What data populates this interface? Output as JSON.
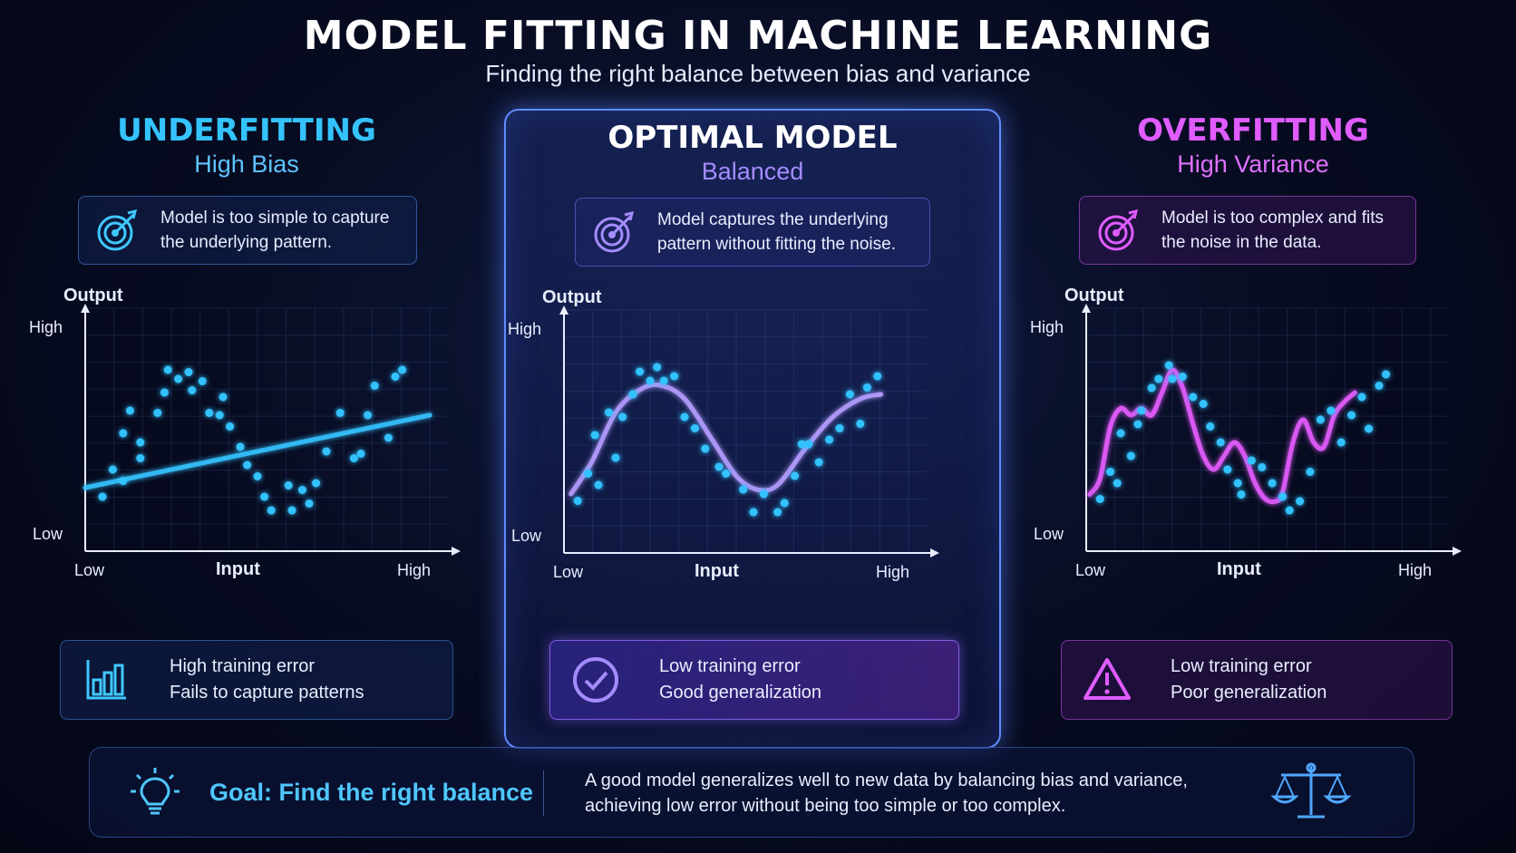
{
  "header": {
    "title": "MODEL FITTING IN MACHINE LEARNING",
    "subtitle": "Finding the right balance between bias and variance"
  },
  "panels": [
    {
      "title": "UNDERFITTING",
      "subtitle": "High Bias",
      "description": [
        "Model is too simple to capture",
        "the underlying pattern."
      ],
      "description_icon": "target-icon",
      "result": [
        "High training error",
        "Fails to capture patterns"
      ],
      "result_icon": "bar-chart-icon",
      "accent": "#34c3ff"
    },
    {
      "title": "OPTIMAL MODEL",
      "subtitle": "Balanced",
      "description": [
        "Model captures the underlying",
        "pattern without fitting the noise."
      ],
      "description_icon": "target-icon",
      "result": [
        "Low training error",
        "Good generalization"
      ],
      "result_icon": "check-circle-icon",
      "accent": "#9d86ff"
    },
    {
      "title": "OVERFITTING",
      "subtitle": "High Variance",
      "description": [
        "Model is too complex and fits",
        "the noise in the data."
      ],
      "description_icon": "target-icon",
      "result": [
        "Low training error",
        "Poor generalization"
      ],
      "result_icon": "warning-icon",
      "accent": "#e05cff"
    }
  ],
  "axes": {
    "y_title": "Output",
    "x_title": "Input",
    "y_high": "High",
    "y_low": "Low",
    "x_low": "Low",
    "x_high": "High"
  },
  "footer": {
    "goal_title": "Goal: Find the right balance",
    "text": [
      "A good model generalizes well to new data by balancing bias and variance,",
      "achieving low error without being too simple or too complex."
    ],
    "left_icon": "lightbulb-icon",
    "right_icon": "balance-scale-icon"
  },
  "colors": {
    "underfit": "#34c3ff",
    "optimal": "#9d86ff",
    "overfit": "#e05cff",
    "background": "#070b20"
  },
  "chart_data": [
    {
      "type": "scatter",
      "fit": "linear",
      "points": [
        [
          0.05,
          0.24
        ],
        [
          0.08,
          0.36
        ],
        [
          0.11,
          0.31
        ],
        [
          0.11,
          0.52
        ],
        [
          0.13,
          0.62
        ],
        [
          0.16,
          0.41
        ],
        [
          0.16,
          0.48
        ],
        [
          0.21,
          0.61
        ],
        [
          0.23,
          0.7
        ],
        [
          0.24,
          0.8
        ],
        [
          0.27,
          0.76
        ],
        [
          0.3,
          0.79
        ],
        [
          0.31,
          0.71
        ],
        [
          0.34,
          0.75
        ],
        [
          0.36,
          0.61
        ],
        [
          0.39,
          0.6
        ],
        [
          0.4,
          0.68
        ],
        [
          0.42,
          0.55
        ],
        [
          0.45,
          0.46
        ],
        [
          0.47,
          0.38
        ],
        [
          0.5,
          0.33
        ],
        [
          0.52,
          0.24
        ],
        [
          0.54,
          0.18
        ],
        [
          0.59,
          0.29
        ],
        [
          0.6,
          0.18
        ],
        [
          0.63,
          0.27
        ],
        [
          0.65,
          0.21
        ],
        [
          0.67,
          0.3
        ],
        [
          0.7,
          0.44
        ],
        [
          0.74,
          0.61
        ],
        [
          0.78,
          0.41
        ],
        [
          0.8,
          0.43
        ],
        [
          0.82,
          0.6
        ],
        [
          0.84,
          0.73
        ],
        [
          0.88,
          0.5
        ],
        [
          0.9,
          0.77
        ],
        [
          0.92,
          0.8
        ]
      ],
      "fit_line": [
        [
          0.0,
          0.28
        ],
        [
          1.0,
          0.6
        ]
      ]
    },
    {
      "type": "scatter",
      "fit": "smooth-curve",
      "points": [
        [
          0.04,
          0.23
        ],
        [
          0.07,
          0.35
        ],
        [
          0.1,
          0.3
        ],
        [
          0.09,
          0.52
        ],
        [
          0.13,
          0.62
        ],
        [
          0.15,
          0.42
        ],
        [
          0.17,
          0.6
        ],
        [
          0.2,
          0.7
        ],
        [
          0.22,
          0.8
        ],
        [
          0.25,
          0.76
        ],
        [
          0.27,
          0.82
        ],
        [
          0.29,
          0.76
        ],
        [
          0.32,
          0.78
        ],
        [
          0.35,
          0.6
        ],
        [
          0.38,
          0.55
        ],
        [
          0.41,
          0.46
        ],
        [
          0.45,
          0.38
        ],
        [
          0.47,
          0.35
        ],
        [
          0.52,
          0.28
        ],
        [
          0.55,
          0.18
        ],
        [
          0.58,
          0.26
        ],
        [
          0.62,
          0.18
        ],
        [
          0.64,
          0.22
        ],
        [
          0.67,
          0.34
        ],
        [
          0.69,
          0.48
        ],
        [
          0.71,
          0.48
        ],
        [
          0.74,
          0.4
        ],
        [
          0.77,
          0.5
        ],
        [
          0.8,
          0.55
        ],
        [
          0.83,
          0.7
        ],
        [
          0.86,
          0.57
        ],
        [
          0.88,
          0.73
        ],
        [
          0.91,
          0.78
        ]
      ],
      "curve": [
        [
          0.02,
          0.26
        ],
        [
          0.08,
          0.4
        ],
        [
          0.15,
          0.62
        ],
        [
          0.22,
          0.72
        ],
        [
          0.28,
          0.74
        ],
        [
          0.35,
          0.68
        ],
        [
          0.43,
          0.5
        ],
        [
          0.5,
          0.34
        ],
        [
          0.56,
          0.28
        ],
        [
          0.62,
          0.3
        ],
        [
          0.7,
          0.46
        ],
        [
          0.78,
          0.6
        ],
        [
          0.86,
          0.68
        ],
        [
          0.92,
          0.7
        ]
      ]
    },
    {
      "type": "scatter",
      "fit": "wiggly-curve",
      "points": [
        [
          0.04,
          0.23
        ],
        [
          0.07,
          0.35
        ],
        [
          0.09,
          0.3
        ],
        [
          0.1,
          0.52
        ],
        [
          0.13,
          0.42
        ],
        [
          0.15,
          0.56
        ],
        [
          0.16,
          0.62
        ],
        [
          0.19,
          0.72
        ],
        [
          0.21,
          0.76
        ],
        [
          0.24,
          0.82
        ],
        [
          0.25,
          0.76
        ],
        [
          0.28,
          0.77
        ],
        [
          0.31,
          0.68
        ],
        [
          0.34,
          0.65
        ],
        [
          0.36,
          0.55
        ],
        [
          0.39,
          0.48
        ],
        [
          0.41,
          0.36
        ],
        [
          0.44,
          0.3
        ],
        [
          0.45,
          0.25
        ],
        [
          0.48,
          0.4
        ],
        [
          0.51,
          0.37
        ],
        [
          0.54,
          0.3
        ],
        [
          0.57,
          0.24
        ],
        [
          0.59,
          0.18
        ],
        [
          0.62,
          0.22
        ],
        [
          0.65,
          0.35
        ],
        [
          0.68,
          0.58
        ],
        [
          0.71,
          0.62
        ],
        [
          0.74,
          0.48
        ],
        [
          0.77,
          0.6
        ],
        [
          0.8,
          0.68
        ],
        [
          0.82,
          0.54
        ],
        [
          0.85,
          0.73
        ],
        [
          0.87,
          0.78
        ]
      ],
      "curve": [
        [
          0.01,
          0.25
        ],
        [
          0.04,
          0.32
        ],
        [
          0.07,
          0.55
        ],
        [
          0.1,
          0.63
        ],
        [
          0.13,
          0.6
        ],
        [
          0.16,
          0.63
        ],
        [
          0.19,
          0.6
        ],
        [
          0.22,
          0.7
        ],
        [
          0.25,
          0.8
        ],
        [
          0.28,
          0.72
        ],
        [
          0.31,
          0.56
        ],
        [
          0.34,
          0.42
        ],
        [
          0.37,
          0.36
        ],
        [
          0.4,
          0.42
        ],
        [
          0.43,
          0.48
        ],
        [
          0.46,
          0.42
        ],
        [
          0.49,
          0.3
        ],
        [
          0.52,
          0.23
        ],
        [
          0.55,
          0.22
        ],
        [
          0.57,
          0.26
        ],
        [
          0.6,
          0.48
        ],
        [
          0.63,
          0.58
        ],
        [
          0.66,
          0.48
        ],
        [
          0.69,
          0.46
        ],
        [
          0.72,
          0.6
        ],
        [
          0.75,
          0.66
        ],
        [
          0.78,
          0.7
        ]
      ]
    }
  ]
}
